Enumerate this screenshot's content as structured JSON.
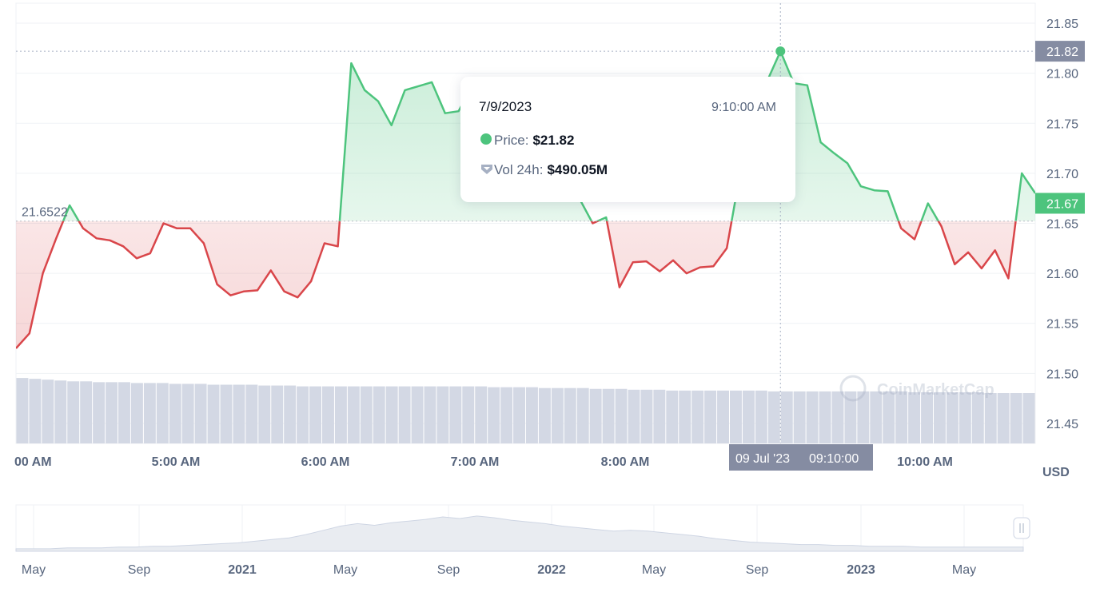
{
  "chart_data": {
    "type": "line",
    "currency": "USD",
    "baseline_value": 21.6522,
    "current_price_label": "21.67",
    "hover_price_label": "21.82",
    "y_axis": {
      "min": 21.43,
      "max": 21.87,
      "ticks": [
        "21.85",
        "21.80",
        "21.75",
        "21.70",
        "21.65",
        "21.60",
        "21.55",
        "21.50",
        "21.45"
      ]
    },
    "x_tick_labels": [
      "00 AM",
      "5:00 AM",
      "6:00 AM",
      "7:00 AM",
      "8:00 AM",
      "10:00 AM"
    ],
    "hover_x_label": {
      "date": "09 Jul '23",
      "time": "09:10:00"
    },
    "price_series": [
      21.525,
      21.54,
      21.6,
      21.635,
      21.668,
      21.645,
      21.635,
      21.633,
      21.627,
      21.615,
      21.62,
      21.65,
      21.645,
      21.645,
      21.63,
      21.589,
      21.578,
      21.582,
      21.583,
      21.603,
      21.582,
      21.576,
      21.592,
      21.63,
      21.627,
      21.81,
      21.783,
      21.772,
      21.748,
      21.783,
      21.787,
      21.791,
      21.76,
      21.762,
      21.787,
      21.774,
      21.758,
      21.745,
      21.735,
      21.72,
      21.705,
      21.69,
      21.675,
      21.65,
      21.656,
      21.586,
      21.611,
      21.612,
      21.602,
      21.613,
      21.6,
      21.606,
      21.607,
      21.625,
      21.7,
      21.76,
      21.792,
      21.822,
      21.79,
      21.788,
      21.731,
      21.72,
      21.71,
      21.687,
      21.683,
      21.682,
      21.645,
      21.634,
      21.67,
      21.647,
      21.609,
      21.621,
      21.605,
      21.623,
      21.595,
      21.7,
      21.68
    ],
    "volume_series": [
      78,
      77,
      76,
      75,
      74,
      74,
      73,
      73,
      73,
      72,
      72,
      72,
      71,
      71,
      71,
      70,
      70,
      70,
      70,
      69,
      69,
      69,
      68,
      68,
      68,
      68,
      68,
      68,
      68,
      68,
      68,
      68,
      68,
      68,
      68,
      68,
      68,
      67,
      67,
      67,
      67,
      66,
      66,
      66,
      66,
      65,
      65,
      65,
      64,
      64,
      64,
      63,
      63,
      63,
      63,
      63,
      63,
      63,
      63,
      62,
      62,
      62,
      62,
      62,
      62,
      62,
      62,
      62,
      62,
      62,
      61,
      61,
      61,
      61,
      61,
      61,
      60,
      60,
      60,
      60
    ],
    "navigator": {
      "labels": [
        {
          "text": "May",
          "bold": false
        },
        {
          "text": "Sep",
          "bold": false
        },
        {
          "text": "2021",
          "bold": true
        },
        {
          "text": "May",
          "bold": false
        },
        {
          "text": "Sep",
          "bold": false
        },
        {
          "text": "2022",
          "bold": true
        },
        {
          "text": "May",
          "bold": false
        },
        {
          "text": "Sep",
          "bold": false
        },
        {
          "text": "2023",
          "bold": true
        },
        {
          "text": "May",
          "bold": false
        }
      ],
      "series": [
        3,
        3,
        3,
        4,
        4,
        4,
        5,
        5,
        6,
        6,
        7,
        8,
        9,
        10,
        12,
        14,
        16,
        20,
        25,
        30,
        33,
        31,
        34,
        36,
        38,
        41,
        39,
        42,
        40,
        37,
        35,
        33,
        30,
        28,
        26,
        24,
        25,
        24,
        22,
        20,
        18,
        15,
        13,
        11,
        10,
        9,
        8,
        8,
        7,
        7,
        6,
        6,
        6,
        5,
        5,
        5,
        5,
        5,
        5,
        5
      ]
    }
  },
  "tooltip": {
    "date": "7/9/2023",
    "time": "9:10:00 AM",
    "price_label": "Price:",
    "price_value": "$21.82",
    "volume_label": "Vol 24h:",
    "volume_value": "$490.05M"
  },
  "watermark": "CoinMarketCap",
  "colors": {
    "up": "#4dc47d",
    "down": "#d9464a",
    "volume": "#d3d8e4",
    "axis_text": "#58667e",
    "label_bg": "#858ca2"
  }
}
